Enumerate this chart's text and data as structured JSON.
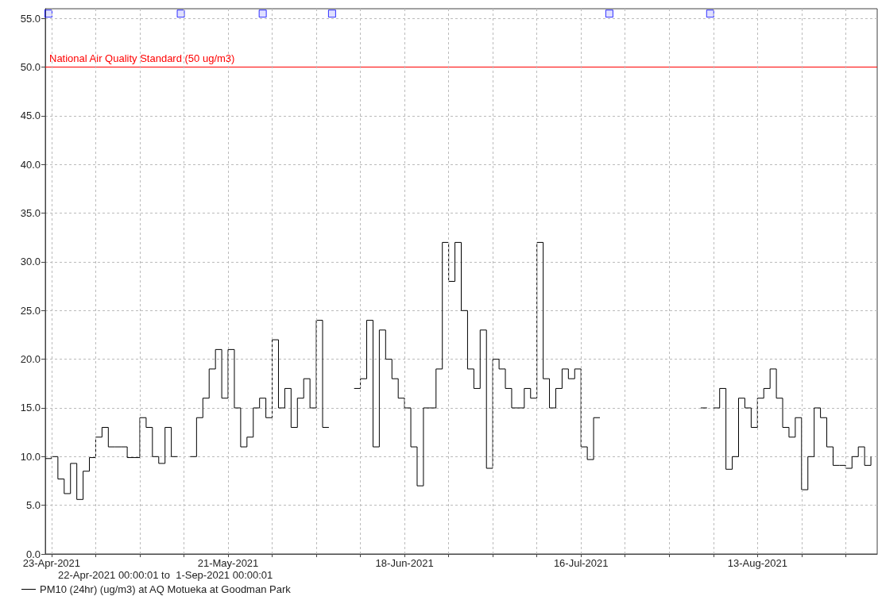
{
  "chart_data": {
    "type": "step",
    "x": [
      "2021-04-22",
      "2021-04-23",
      "2021-04-24",
      "2021-04-25",
      "2021-04-26",
      "2021-04-27",
      "2021-04-28",
      "2021-04-29",
      "2021-04-30",
      "2021-05-01",
      "2021-05-02",
      "2021-05-03",
      "2021-05-04",
      "2021-05-05",
      "2021-05-06",
      "2021-05-07",
      "2021-05-08",
      "2021-05-09",
      "2021-05-10",
      "2021-05-11",
      "2021-05-12",
      "2021-05-13",
      "2021-05-14",
      "2021-05-15",
      "2021-05-16",
      "2021-05-17",
      "2021-05-18",
      "2021-05-19",
      "2021-05-20",
      "2021-05-21",
      "2021-05-22",
      "2021-05-23",
      "2021-05-24",
      "2021-05-25",
      "2021-05-26",
      "2021-05-27",
      "2021-05-28",
      "2021-05-29",
      "2021-05-30",
      "2021-05-31",
      "2021-06-01",
      "2021-06-02",
      "2021-06-03",
      "2021-06-04",
      "2021-06-05",
      "2021-06-06",
      "2021-06-07",
      "2021-06-08",
      "2021-06-09",
      "2021-06-10",
      "2021-06-11",
      "2021-06-12",
      "2021-06-13",
      "2021-06-14",
      "2021-06-15",
      "2021-06-16",
      "2021-06-17",
      "2021-06-18",
      "2021-06-19",
      "2021-06-20",
      "2021-06-21",
      "2021-06-22",
      "2021-06-23",
      "2021-06-24",
      "2021-06-25",
      "2021-06-26",
      "2021-06-27",
      "2021-06-28",
      "2021-06-29",
      "2021-06-30",
      "2021-07-01",
      "2021-07-02",
      "2021-07-03",
      "2021-07-04",
      "2021-07-05",
      "2021-07-06",
      "2021-07-07",
      "2021-07-08",
      "2021-07-09",
      "2021-07-10",
      "2021-07-11",
      "2021-07-12",
      "2021-07-13",
      "2021-07-14",
      "2021-07-15",
      "2021-07-16",
      "2021-07-17",
      "2021-07-18",
      "2021-07-19",
      "2021-07-20",
      "2021-07-21",
      "2021-07-22",
      "2021-07-23",
      "2021-07-24",
      "2021-07-25",
      "2021-07-26",
      "2021-07-27",
      "2021-07-28",
      "2021-07-29",
      "2021-07-30",
      "2021-07-31",
      "2021-08-01",
      "2021-08-02",
      "2021-08-03",
      "2021-08-04",
      "2021-08-05",
      "2021-08-06",
      "2021-08-07",
      "2021-08-08",
      "2021-08-09",
      "2021-08-10",
      "2021-08-11",
      "2021-08-12",
      "2021-08-13",
      "2021-08-14",
      "2021-08-15",
      "2021-08-16",
      "2021-08-17",
      "2021-08-18",
      "2021-08-19",
      "2021-08-20",
      "2021-08-21",
      "2021-08-22",
      "2021-08-23",
      "2021-08-24",
      "2021-08-25",
      "2021-08-26",
      "2021-08-27",
      "2021-08-28",
      "2021-08-29",
      "2021-08-30",
      "2021-08-31"
    ],
    "series": [
      {
        "name": "PM10 (24hr) (ug/m3) at AQ Motueka at Goodman Park",
        "color": "#000000",
        "values": [
          9.8,
          10,
          7.7,
          6.2,
          9.3,
          5.6,
          8.5,
          9.9,
          12,
          13,
          11,
          11,
          11,
          9.9,
          9.9,
          14,
          13,
          10,
          9.3,
          13,
          10,
          null,
          null,
          10,
          14,
          16,
          19,
          21,
          16,
          21,
          15,
          11,
          12,
          15,
          16,
          14,
          22,
          15,
          17,
          13,
          16,
          18,
          15,
          24,
          13,
          null,
          null,
          null,
          null,
          17,
          18,
          24,
          11,
          23,
          20,
          18,
          16,
          15,
          11,
          7,
          15,
          15,
          19,
          32,
          28,
          32,
          25,
          19,
          17,
          23,
          8.8,
          20,
          19,
          17,
          15,
          15,
          17,
          16,
          32,
          18,
          15,
          17,
          19,
          18,
          19,
          11,
          9.7,
          14,
          null,
          null,
          null,
          null,
          null,
          null,
          null,
          null,
          null,
          null,
          null,
          null,
          null,
          null,
          null,
          null,
          15,
          null,
          15,
          17,
          8.7,
          10,
          16,
          15,
          13,
          16,
          17,
          19,
          16,
          13,
          12,
          14,
          6.6,
          10,
          15,
          14,
          11,
          9.1,
          9.1,
          8.8,
          10,
          11,
          9.1,
          10
        ]
      },
      {
        "type": "scatter",
        "marker": "square",
        "color": "#0000ff",
        "x": [
          "2021-04-22T12:00",
          "2021-05-13T12:00",
          "2021-05-26T12:00",
          "2021-06-06T12:00",
          "2021-07-20T12:00",
          "2021-08-05T12:00"
        ],
        "values": [
          55.5,
          55.5,
          55.5,
          55.5,
          55.5,
          55.5
        ]
      }
    ],
    "xlim": [
      "2021-04-22",
      "2021-09-01"
    ],
    "xticks": [
      {
        "value": "2021-04-23",
        "label": "23-Apr-2021"
      },
      {
        "value": "2021-04-30",
        "label": null
      },
      {
        "value": "2021-05-07",
        "label": null
      },
      {
        "value": "2021-05-14",
        "label": null
      },
      {
        "value": "2021-05-21",
        "label": "21-May-2021"
      },
      {
        "value": "2021-05-28",
        "label": null
      },
      {
        "value": "2021-06-04",
        "label": null
      },
      {
        "value": "2021-06-11",
        "label": null
      },
      {
        "value": "2021-06-18",
        "label": "18-Jun-2021"
      },
      {
        "value": "2021-06-25",
        "label": null
      },
      {
        "value": "2021-07-02",
        "label": null
      },
      {
        "value": "2021-07-09",
        "label": null
      },
      {
        "value": "2021-07-16",
        "label": "16-Jul-2021"
      },
      {
        "value": "2021-07-23",
        "label": null
      },
      {
        "value": "2021-07-30",
        "label": null
      },
      {
        "value": "2021-08-06",
        "label": null
      },
      {
        "value": "2021-08-13",
        "label": "13-Aug-2021"
      },
      {
        "value": "2021-08-20",
        "label": null
      },
      {
        "value": "2021-08-27",
        "label": null
      }
    ],
    "ylim": [
      0,
      56
    ],
    "yticks": [
      {
        "value": 0,
        "label": "0.0"
      },
      {
        "value": 5,
        "label": "5.0"
      },
      {
        "value": 10,
        "label": "10.0"
      },
      {
        "value": 15,
        "label": "15.0"
      },
      {
        "value": 20,
        "label": "20.0"
      },
      {
        "value": 25,
        "label": "25.0"
      },
      {
        "value": 30,
        "label": "30.0"
      },
      {
        "value": 35,
        "label": "35.0"
      },
      {
        "value": 40,
        "label": "40.0"
      },
      {
        "value": 45,
        "label": "45.0"
      },
      {
        "value": 50,
        "label": "50.0"
      },
      {
        "value": 55,
        "label": "55.0"
      }
    ],
    "ref_lines": [
      {
        "axis": "y",
        "value": 50,
        "label": "National Air Quality Standard (50 ug/m3)",
        "color": "#ff0000"
      }
    ],
    "annotations": [
      "22-Apr-2021 00:00:01 to  1-Sep-2021 00:00:01"
    ],
    "grid": true,
    "legend": "bottom left"
  }
}
